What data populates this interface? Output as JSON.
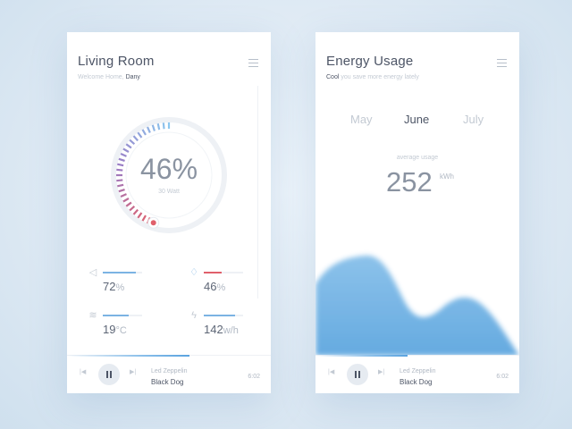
{
  "living": {
    "title": "Living Room",
    "welcome": "Welcome Home,",
    "user": "Dany",
    "gauge": {
      "value_text": "46%",
      "percent": 46,
      "sub": "30 Watt"
    },
    "stats": [
      {
        "icon": "speaker-icon",
        "value": "72",
        "unit": "%",
        "level": 0.85,
        "color": "#7bb3e3"
      },
      {
        "icon": "water-drop-icon",
        "value": "46",
        "unit": "%",
        "level": 0.46,
        "color": "#e0606b"
      },
      {
        "icon": "wind-icon",
        "value": "19",
        "unit": "°C",
        "level": 0.65,
        "color": "#7bb3e3"
      },
      {
        "icon": "lightning-icon",
        "value": "142",
        "unit": "w/h",
        "level": 0.8,
        "color": "#7bb3e3"
      }
    ],
    "player": {
      "artist": "Led Zeppelin",
      "title": "Black Dog",
      "time": "6:02",
      "progress": 0.6
    }
  },
  "energy": {
    "title": "Energy Usage",
    "status_word": "Cool",
    "status_rest": "you save more energy lately",
    "months": [
      "May",
      "June",
      "July"
    ],
    "active_month": "June",
    "avg_label": "average usage",
    "usage": "252",
    "unit": "kWh",
    "player": {
      "artist": "Led Zeppelin",
      "title": "Black Dog",
      "time": "6:02",
      "progress": 0.45
    }
  },
  "colors": {
    "accent": "#6fb0e4",
    "gauge_start": "#8cc7ef",
    "gauge_end": "#e0606b",
    "text": "#4d5566"
  }
}
